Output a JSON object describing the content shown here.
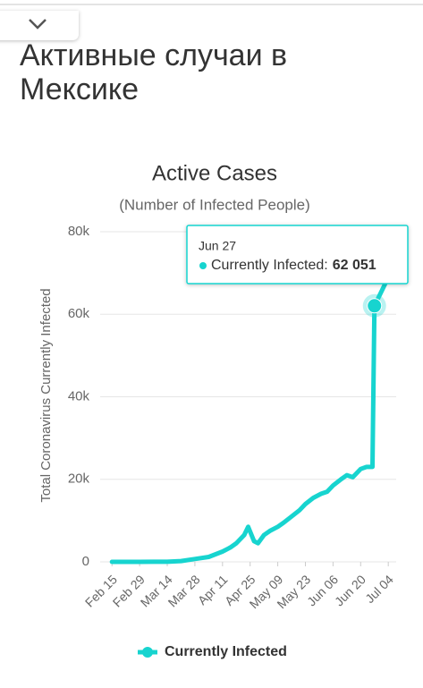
{
  "header": {
    "title": "Активные случаи в Мексике"
  },
  "chart_data": {
    "type": "line",
    "title": "Active Cases",
    "subtitle": "(Number of Infected People)",
    "y_label": "Total Coronavirus Currently Infected",
    "x": [
      "Feb 15",
      "Feb 29",
      "Mar 07",
      "Mar 14",
      "Mar 21",
      "Mar 28",
      "Apr 04",
      "Apr 11",
      "Apr 15",
      "Apr 18",
      "Apr 22",
      "Apr 24",
      "Apr 27",
      "Apr 29",
      "May 02",
      "May 05",
      "May 09",
      "May 12",
      "May 16",
      "May 20",
      "May 23",
      "May 27",
      "May 31",
      "Jun 03",
      "Jun 06",
      "Jun 10",
      "Jun 13",
      "Jun 16",
      "Jun 20",
      "Jun 23",
      "Jun 26",
      "Jun 27",
      "Jul 01",
      "Jul 05"
    ],
    "series": [
      {
        "name": "Currently Infected",
        "color": "#17d4cf",
        "values": [
          0,
          0,
          20,
          30,
          200,
          700,
          1200,
          2500,
          3500,
          4500,
          6500,
          8500,
          5000,
          4500,
          6500,
          7500,
          8500,
          9500,
          11000,
          12500,
          14000,
          15500,
          16500,
          17000,
          18500,
          20000,
          21000,
          20500,
          22500,
          23000,
          23000,
          62051,
          66000,
          70000
        ]
      }
    ],
    "xlim": [
      "Feb 09",
      "Jul 08"
    ],
    "xticks": [
      "Feb 15",
      "Feb 29",
      "Mar 14",
      "Mar 28",
      "Apr 11",
      "Apr 25",
      "May 09",
      "May 23",
      "Jun 06",
      "Jun 20",
      "Jul 04"
    ],
    "ylim": [
      0,
      80000
    ],
    "yticks": [
      0,
      {
        "value": 20000,
        "label": "20k"
      },
      {
        "value": 40000,
        "label": "40k"
      },
      {
        "value": 60000,
        "label": "60k"
      },
      {
        "value": 80000,
        "label": "80k"
      }
    ],
    "grid": true,
    "tooltip": {
      "x": "Jun 27",
      "label": "Currently Infected:",
      "value": 62051,
      "value_label": "62 051"
    }
  }
}
